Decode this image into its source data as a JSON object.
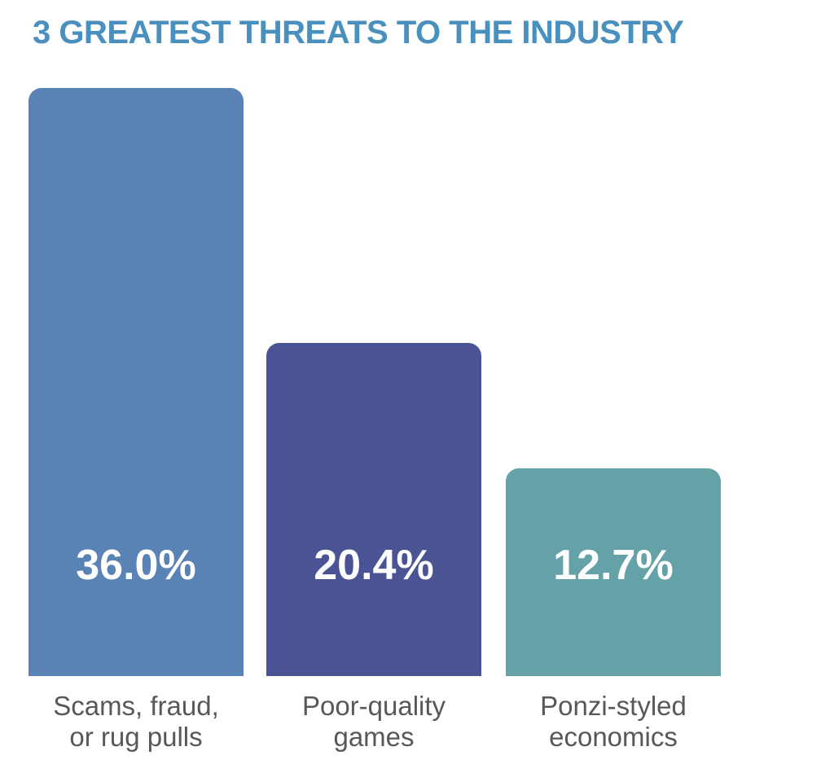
{
  "title": "3 GREATEST THREATS TO THE INDUSTRY",
  "colors": {
    "title_text": "#4a90be",
    "value_text": "#ffffff",
    "category_text": "#57585a",
    "background": "#ffffff"
  },
  "chart_data": {
    "type": "bar",
    "title": "3 GREATEST THREATS TO THE INDUSTRY",
    "orientation": "vertical",
    "categories": [
      "Scams, fraud, or rug pulls",
      "Poor-quality games",
      "Ponzi-styled economics"
    ],
    "category_lines": [
      [
        "Scams, fraud,",
        "or rug pulls"
      ],
      [
        "Poor-quality",
        "games"
      ],
      [
        "Ponzi-styled",
        "economics"
      ]
    ],
    "values": [
      36.0,
      20.4,
      12.7
    ],
    "value_labels": [
      "36.0%",
      "20.4%",
      "12.7%"
    ],
    "bar_colors": [
      "#5883b4",
      "#4a5494",
      "#64a2a8"
    ],
    "value_label_position": "inside-bottom",
    "xlabel": "",
    "ylabel": "",
    "ylim": [
      0,
      36
    ],
    "grid": false,
    "legend": false,
    "axes_shown": false
  }
}
